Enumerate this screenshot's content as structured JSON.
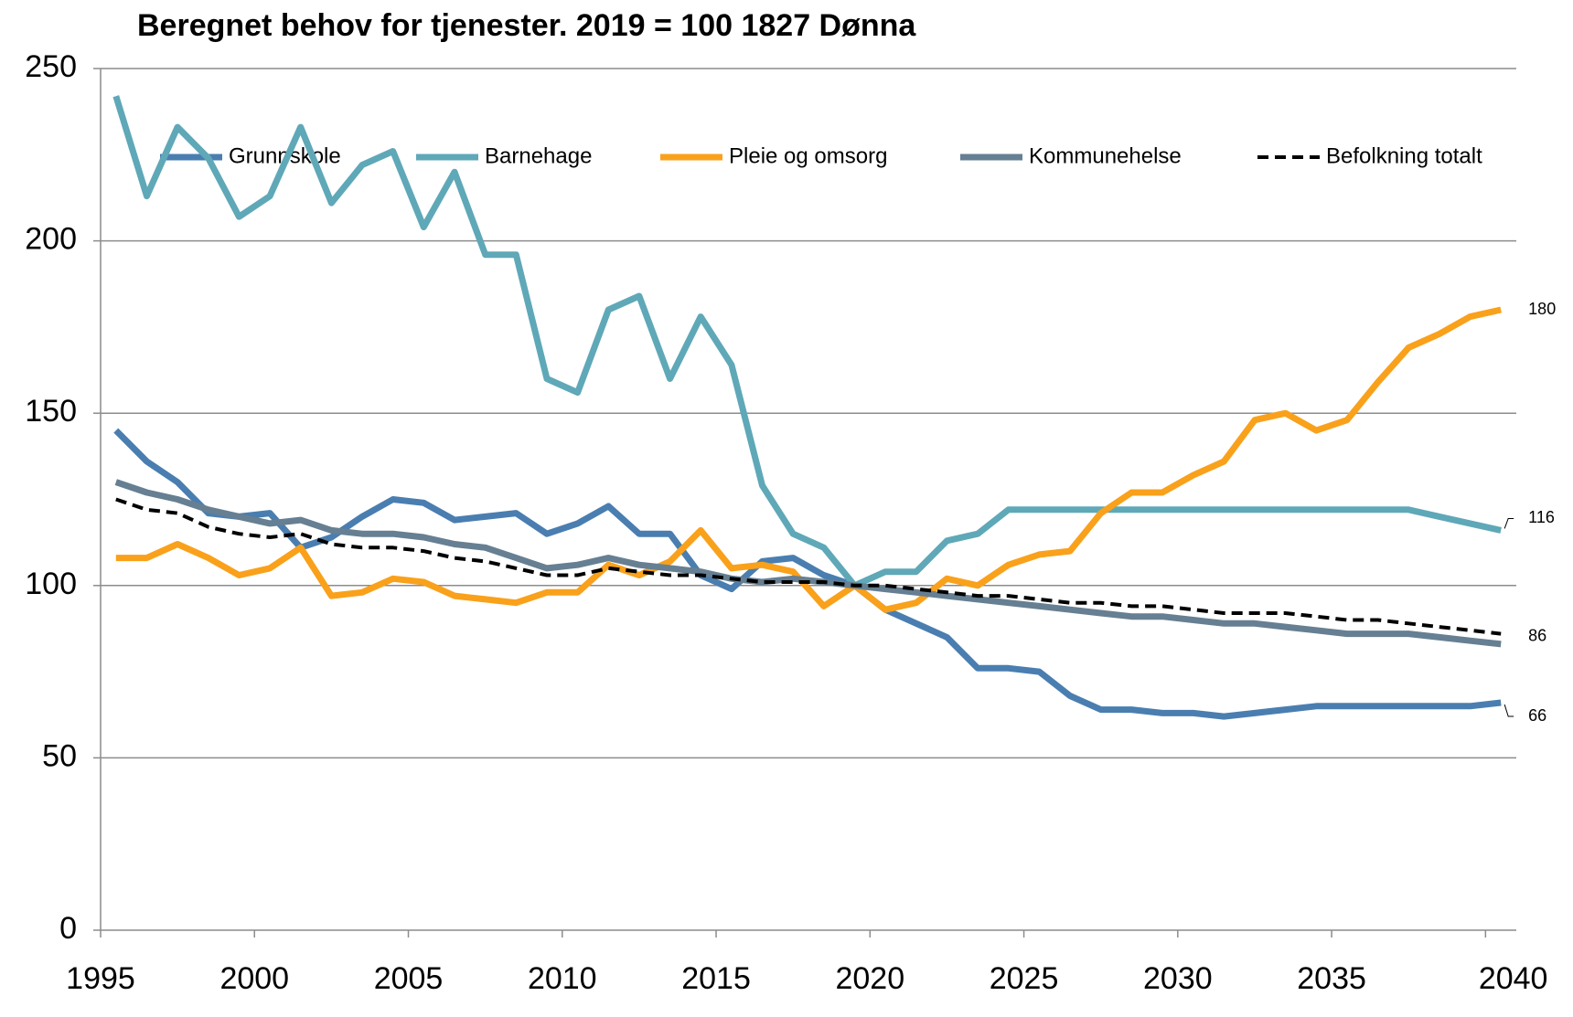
{
  "chart_data": {
    "type": "line",
    "title": "Beregnet behov for tjenester.  2019 = 100  1827 Dønna",
    "categories": [
      "1995",
      null,
      null,
      null,
      null,
      "2000",
      null,
      null,
      null,
      null,
      "2005",
      null,
      null,
      null,
      null,
      "2010",
      null,
      null,
      null,
      null,
      "2015",
      null,
      null,
      null,
      null,
      "2020",
      null,
      null,
      null,
      null,
      "2025",
      null,
      null,
      null,
      null,
      "2030",
      null,
      null,
      null,
      null,
      "2035",
      null,
      null,
      null,
      null,
      "2040"
    ],
    "ylim": [
      0,
      250
    ],
    "yticks": [
      0,
      50,
      100,
      150,
      200,
      250
    ],
    "grid": true,
    "legend": "top",
    "series": [
      {
        "name": "Grunnskole",
        "color": "#4a7eb0",
        "end_label": 66,
        "values": [
          145,
          136,
          130,
          121,
          120,
          121,
          111,
          114,
          120,
          125,
          124,
          119,
          120,
          121,
          115,
          118,
          123,
          115,
          115,
          103,
          99,
          107,
          108,
          103,
          100,
          93,
          89,
          85,
          76,
          76,
          75,
          68,
          64,
          64,
          63,
          63,
          62,
          63,
          64,
          65,
          65,
          65,
          65,
          65,
          65,
          66
        ]
      },
      {
        "name": "Barnehage",
        "color": "#5fa8b8",
        "end_label": 116,
        "values": [
          242,
          213,
          233,
          224,
          207,
          213,
          233,
          211,
          222,
          226,
          204,
          220,
          196,
          196,
          160,
          156,
          180,
          184,
          160,
          178,
          164,
          129,
          115,
          111,
          100,
          104,
          104,
          113,
          115,
          122,
          122,
          122,
          122,
          122,
          122,
          122,
          122,
          122,
          122,
          122,
          122,
          122,
          122,
          120,
          118,
          116
        ]
      },
      {
        "name": "Pleie og omsorg",
        "color": "#f9a11b",
        "end_label": 180,
        "values": [
          108,
          108,
          112,
          108,
          103,
          105,
          111,
          97,
          98,
          102,
          101,
          97,
          96,
          95,
          98,
          98,
          106,
          103,
          107,
          116,
          105,
          106,
          104,
          94,
          100,
          93,
          95,
          102,
          100,
          106,
          109,
          110,
          121,
          127,
          127,
          132,
          136,
          148,
          150,
          145,
          148,
          159,
          169,
          173,
          178,
          180
        ]
      },
      {
        "name": "Kommunehelse",
        "color": "#667f92",
        "values": [
          130,
          127,
          125,
          122,
          120,
          118,
          119,
          116,
          115,
          115,
          114,
          112,
          111,
          108,
          105,
          106,
          108,
          106,
          105,
          104,
          102,
          101,
          102,
          101,
          100,
          99,
          98,
          97,
          96,
          95,
          94,
          93,
          92,
          91,
          91,
          90,
          89,
          89,
          88,
          87,
          86,
          86,
          86,
          85,
          84,
          83
        ]
      },
      {
        "name": "Befolkning totalt",
        "color": "#000000",
        "dash": true,
        "end_label": 86,
        "values": [
          125,
          122,
          121,
          117,
          115,
          114,
          115,
          112,
          111,
          111,
          110,
          108,
          107,
          105,
          103,
          103,
          105,
          104,
          103,
          103,
          102,
          101,
          101,
          101,
          100,
          100,
          99,
          98,
          97,
          97,
          96,
          95,
          95,
          94,
          94,
          93,
          92,
          92,
          92,
          91,
          90,
          90,
          89,
          88,
          87,
          86
        ]
      }
    ]
  }
}
